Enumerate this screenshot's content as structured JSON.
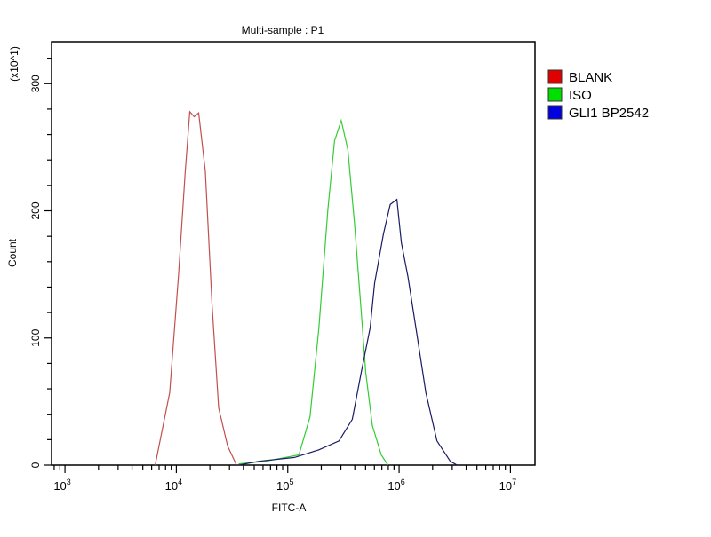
{
  "chart_data": {
    "type": "line",
    "title": "Multi-sample : P1",
    "xlabel": "FITC-A",
    "ylabel": "Count",
    "y_multiplier_label": "(x10^1)",
    "x_scale": "log",
    "xlim": [
      758,
      16600000
    ],
    "ylim": [
      0,
      333
    ],
    "x_ticks": [
      {
        "base": "10",
        "exp": "3"
      },
      {
        "base": "10",
        "exp": "4"
      },
      {
        "base": "10",
        "exp": "5"
      },
      {
        "base": "10",
        "exp": "6"
      },
      {
        "base": "10",
        "exp": "7"
      }
    ],
    "y_ticks": [
      "0",
      "100",
      "200",
      "300"
    ],
    "grid": false,
    "legend_position": "right",
    "series": [
      {
        "name": "BLANK",
        "color": "#e00000",
        "line_color": "#c0504d",
        "log10_x": [
          3.81,
          3.94,
          4.02,
          4.08,
          4.12,
          4.16,
          4.2,
          4.26,
          4.32,
          4.38,
          4.46,
          4.54
        ],
        "y": [
          0,
          57,
          150,
          231,
          278,
          274,
          277,
          231,
          127,
          45,
          15,
          0
        ]
      },
      {
        "name": "ISO",
        "color": "#00e000",
        "line_color": "#33cc33",
        "log10_x": [
          4.56,
          4.8,
          5.1,
          5.2,
          5.28,
          5.36,
          5.42,
          5.48,
          5.54,
          5.6,
          5.66,
          5.7,
          5.76,
          5.84,
          5.9
        ],
        "y": [
          1,
          3,
          8,
          38,
          108,
          201,
          255,
          271,
          248,
          190,
          120,
          73,
          31,
          8,
          0
        ]
      },
      {
        "name": "GLI1 BP2542",
        "color": "#0000e0",
        "line_color": "#1a1a66",
        "log10_x": [
          4.56,
          4.74,
          5.06,
          5.28,
          5.46,
          5.58,
          5.66,
          5.74,
          5.78,
          5.86,
          5.92,
          5.98,
          6.02,
          6.08,
          6.16,
          6.24,
          6.34,
          6.46,
          6.52
        ],
        "y": [
          0,
          3,
          6,
          12,
          19,
          36,
          73,
          108,
          143,
          182,
          205,
          209,
          175,
          148,
          103,
          57,
          19,
          3,
          0
        ]
      }
    ]
  }
}
